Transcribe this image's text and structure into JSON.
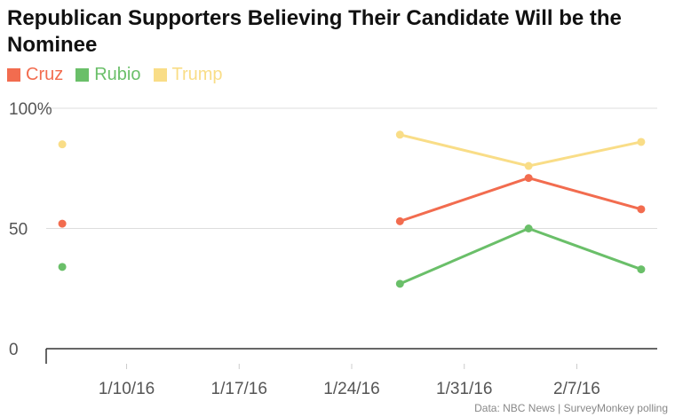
{
  "chart_data": {
    "type": "line",
    "title": "Republican Supporters Believing Their Candidate Will be the Nominee",
    "ylim": [
      0,
      100
    ],
    "y_ticks": [
      {
        "value": 0,
        "label": "0"
      },
      {
        "value": 50,
        "label": "50"
      },
      {
        "value": 100,
        "label": "100%"
      }
    ],
    "x_range": [
      "2016-01-05",
      "2016-02-12"
    ],
    "x_ticks": [
      {
        "date": "2016-01-10",
        "label": "1/10/16"
      },
      {
        "date": "2016-01-17",
        "label": "1/17/16"
      },
      {
        "date": "2016-01-24",
        "label": "1/24/16"
      },
      {
        "date": "2016-01-31",
        "label": "1/31/16"
      },
      {
        "date": "2016-02-07",
        "label": "2/7/16"
      }
    ],
    "grid": true,
    "legend_position": "top-left",
    "series": [
      {
        "name": "Cruz",
        "color": "#f26c4f",
        "points": [
          {
            "x": "2016-01-06",
            "y": 52
          },
          {
            "x": "2016-01-27",
            "y": 53
          },
          {
            "x": "2016-02-04",
            "y": 71
          },
          {
            "x": "2016-02-11",
            "y": 58
          }
        ]
      },
      {
        "name": "Rubio",
        "color": "#6abf69",
        "points": [
          {
            "x": "2016-01-06",
            "y": 34
          },
          {
            "x": "2016-01-27",
            "y": 27
          },
          {
            "x": "2016-02-04",
            "y": 50
          },
          {
            "x": "2016-02-11",
            "y": 33
          }
        ]
      },
      {
        "name": "Trump",
        "color": "#f9dd87",
        "points": [
          {
            "x": "2016-01-06",
            "y": 85
          },
          {
            "x": "2016-01-27",
            "y": 89
          },
          {
            "x": "2016-02-04",
            "y": 76
          },
          {
            "x": "2016-02-11",
            "y": 86
          }
        ]
      }
    ],
    "source": "Data: NBC News | SurveyMonkey polling"
  }
}
